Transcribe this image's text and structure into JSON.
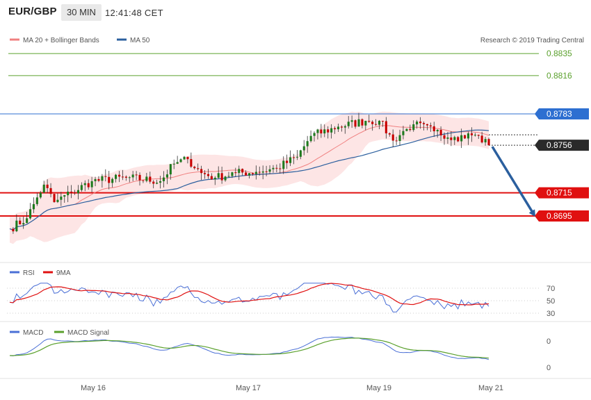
{
  "header": {
    "symbol": "EUR/GBP",
    "timeframe": "30 MIN",
    "time": "12:41:48 CET"
  },
  "price_panel": {
    "legend": [
      {
        "name": "MA 20 + Bollinger Bands",
        "color": "#f08080"
      },
      {
        "name": "MA 50",
        "color": "#2b5f9e"
      }
    ],
    "credit": "Research © 2019 Trading Central",
    "levels": [
      {
        "label": "0.8835",
        "value": 0.8835,
        "type": "target",
        "color": "#5aa02c"
      },
      {
        "label": "0.8816",
        "value": 0.8816,
        "type": "target",
        "color": "#5aa02c"
      },
      {
        "label": "0.8783",
        "value": 0.8783,
        "type": "resistance",
        "color": "#2d6fd1"
      },
      {
        "label": "0.8756",
        "value": 0.8756,
        "type": "last",
        "color": "#333333"
      },
      {
        "label": "0.8715",
        "value": 0.8715,
        "type": "support",
        "color": "#e01010"
      },
      {
        "label": "0.8695",
        "value": 0.8695,
        "type": "support",
        "color": "#e01010"
      }
    ]
  },
  "rsi_panel": {
    "legend": [
      {
        "name": "RSI",
        "color": "#4a6fd6"
      },
      {
        "name": "9MA",
        "color": "#e01010"
      }
    ],
    "ticks": [
      "70",
      "50",
      "30"
    ]
  },
  "macd_panel": {
    "legend": [
      {
        "name": "MACD",
        "color": "#4a6fd6"
      },
      {
        "name": "MACD Signal",
        "color": "#5aa02c"
      }
    ],
    "ticks": [
      "0",
      "0"
    ]
  },
  "x_labels": [
    "May 16",
    "May 17",
    "May 19",
    "May 21"
  ],
  "chart_data": {
    "type": "candlestick",
    "series": [
      {
        "name": "MA 20 + Bollinger Bands"
      },
      {
        "name": "MA 50"
      },
      {
        "name": "RSI"
      },
      {
        "name": "9MA"
      },
      {
        "name": "MACD"
      },
      {
        "name": "MACD Signal"
      }
    ],
    "x_labels": [
      "May 16",
      "May 17",
      "May 19",
      "May 21"
    ],
    "y_levels": [
      0.8835,
      0.8816,
      0.8783,
      0.8756,
      0.8715,
      0.8695
    ],
    "anchors": [
      {
        "i": 0,
        "c": 0.8684
      },
      {
        "i": 5,
        "c": 0.8693
      },
      {
        "i": 8,
        "c": 0.8711
      },
      {
        "i": 10,
        "c": 0.8722
      },
      {
        "i": 13,
        "c": 0.8707
      },
      {
        "i": 18,
        "c": 0.8715
      },
      {
        "i": 24,
        "c": 0.8725
      },
      {
        "i": 34,
        "c": 0.8728
      },
      {
        "i": 44,
        "c": 0.8725
      },
      {
        "i": 48,
        "c": 0.874
      },
      {
        "i": 52,
        "c": 0.8744
      },
      {
        "i": 56,
        "c": 0.8732
      },
      {
        "i": 60,
        "c": 0.8728
      },
      {
        "i": 66,
        "c": 0.8732
      },
      {
        "i": 72,
        "c": 0.8733
      },
      {
        "i": 78,
        "c": 0.8736
      },
      {
        "i": 84,
        "c": 0.8746
      },
      {
        "i": 88,
        "c": 0.8764
      },
      {
        "i": 96,
        "c": 0.8772
      },
      {
        "i": 104,
        "c": 0.8777
      },
      {
        "i": 108,
        "c": 0.8777
      },
      {
        "i": 112,
        "c": 0.876
      },
      {
        "i": 116,
        "c": 0.877
      },
      {
        "i": 118,
        "c": 0.8774
      },
      {
        "i": 124,
        "c": 0.8768
      },
      {
        "i": 130,
        "c": 0.8763
      },
      {
        "i": 136,
        "c": 0.8765
      },
      {
        "i": 140,
        "c": 0.8756
      }
    ],
    "rsi_range": [
      30,
      70
    ],
    "projection": {
      "from": 0.8756,
      "to": 0.8695
    }
  }
}
